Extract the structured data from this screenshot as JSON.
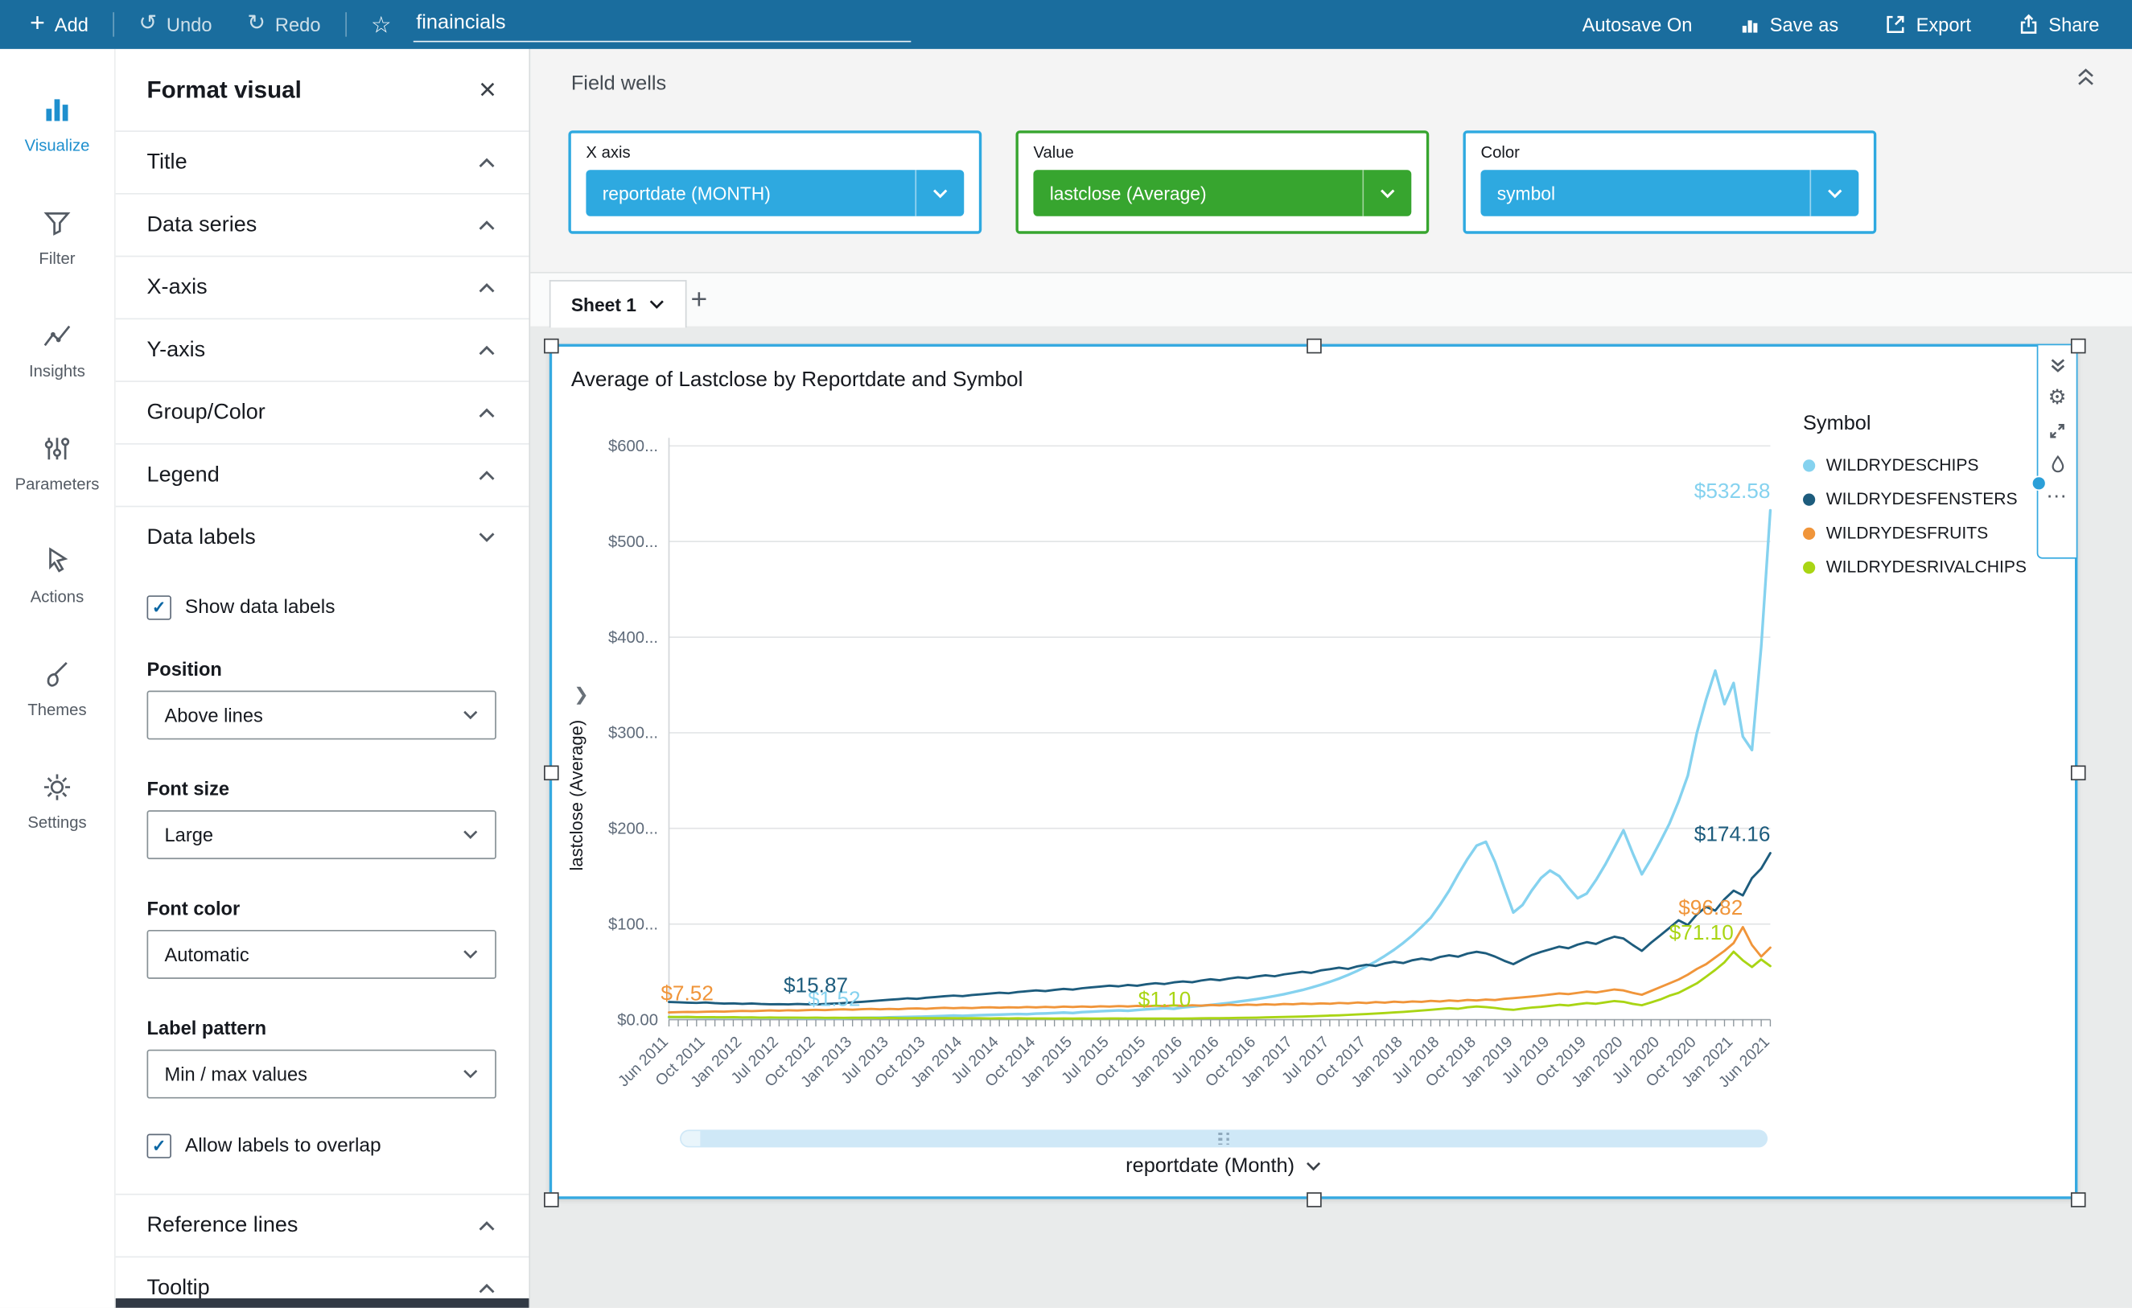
{
  "topbar": {
    "add": "Add",
    "undo": "Undo",
    "redo": "Redo",
    "title": "finaincials",
    "autosave": "Autosave On",
    "save_as": "Save as",
    "export": "Export",
    "share": "Share"
  },
  "nav_rail": {
    "items": [
      {
        "id": "visualize",
        "label": "Visualize",
        "active": true
      },
      {
        "id": "filter",
        "label": "Filter",
        "active": false
      },
      {
        "id": "insights",
        "label": "Insights",
        "active": false
      },
      {
        "id": "parameters",
        "label": "Parameters",
        "active": false
      },
      {
        "id": "actions",
        "label": "Actions",
        "active": false
      },
      {
        "id": "themes",
        "label": "Themes",
        "active": false
      },
      {
        "id": "settings",
        "label": "Settings",
        "active": false
      }
    ]
  },
  "format_panel": {
    "title": "Format visual",
    "close_label": "×",
    "sections_top": [
      "Title",
      "Data series",
      "X-axis",
      "Y-axis",
      "Group/Color",
      "Legend"
    ],
    "data_labels": {
      "header": "Data labels",
      "show_label": "Show data labels",
      "show_checked": true,
      "fields": [
        {
          "label": "Position",
          "value": "Above lines"
        },
        {
          "label": "Font size",
          "value": "Large"
        },
        {
          "label": "Font color",
          "value": "Automatic"
        },
        {
          "label": "Label pattern",
          "value": "Min / max values"
        }
      ],
      "overlap_label": "Allow labels to overlap",
      "overlap_checked": true
    },
    "sections_bottom": [
      "Reference lines",
      "Tooltip"
    ]
  },
  "field_wells": {
    "title": "Field wells",
    "wells": [
      {
        "label": "X axis",
        "value": "reportdate (MONTH)",
        "color": "#2ea9e0",
        "border": "#2ea9e0"
      },
      {
        "label": "Value",
        "value": "lastclose (Average)",
        "color": "#37a52f",
        "border": "#37a52f"
      },
      {
        "label": "Color",
        "value": "symbol",
        "color": "#2ea9e0",
        "border": "#2ea9e0"
      }
    ]
  },
  "sheet": {
    "active_tab": "Sheet 1"
  },
  "visual": {
    "title": "Average of Lastclose by Reportdate and Symbol"
  },
  "chart_data": {
    "type": "line",
    "title": "Average of Lastclose by Reportdate and Symbol",
    "xlabel": "reportdate (Month)",
    "ylabel": "lastclose (Average)",
    "legend_title": "Symbol",
    "legend_position": "right",
    "grid": true,
    "ylim": [
      0,
      600
    ],
    "y_tick_labels": [
      "$0.00",
      "$100...",
      "$200...",
      "$300...",
      "$400...",
      "$500...",
      "$600..."
    ],
    "x_tick_labels": [
      "Jun 2011",
      "Oct 2011",
      "Jan 2012",
      "Jul 2012",
      "Oct 2012",
      "Jan 2013",
      "Jul 2013",
      "Oct 2013",
      "Jan 2014",
      "Jul 2014",
      "Oct 2014",
      "Jan 2015",
      "Jul 2015",
      "Oct 2015",
      "Jan 2016",
      "Jul 2016",
      "Oct 2016",
      "Jan 2017",
      "Jul 2017",
      "Oct 2017",
      "Jan 2018",
      "Jul 2018",
      "Oct 2018",
      "Jan 2019",
      "Jul 2019",
      "Oct 2019",
      "Jan 2020",
      "Jul 2020",
      "Oct 2020",
      "Jan 2021",
      "Jun 2021"
    ],
    "data_labels": {
      "pattern": "Min / max values",
      "position": "Above lines",
      "font_size": "Large"
    },
    "series": [
      {
        "name": "WILDRYDESCHIPS",
        "color": "#85d2ef",
        "values": [
          2.6,
          2.5,
          2.7,
          2.4,
          2.3,
          2.2,
          2.4,
          2.3,
          2.2,
          2.1,
          2.0,
          1.9,
          1.9,
          1.8,
          1.7,
          1.6,
          1.7,
          1.6,
          1.52,
          1.6,
          1.8,
          1.9,
          2.0,
          2.2,
          2.4,
          2.6,
          2.8,
          3.0,
          3.3,
          3.6,
          3.9,
          4.2,
          4.0,
          4.4,
          4.7,
          5.0,
          5.3,
          5.6,
          5.9,
          5.7,
          6.2,
          6.6,
          7.0,
          7.4,
          7.0,
          7.8,
          8.3,
          8.8,
          9.2,
          9.7,
          9.3,
          10.1,
          10.8,
          11.4,
          12.0,
          11.4,
          12.8,
          13.6,
          14.5,
          15.4,
          16.4,
          17.5,
          18.7,
          20.0,
          21.4,
          23.0,
          24.7,
          26.6,
          28.7,
          31.0,
          33.6,
          36.4,
          39.5,
          43.0,
          46.8,
          51.0,
          55.7,
          60.9,
          66.7,
          73.1,
          80.2,
          88.1,
          96.9,
          106.6,
          120,
          135,
          152,
          168,
          182,
          186,
          165,
          138,
          112,
          120,
          135,
          148,
          156,
          150,
          138,
          127,
          132,
          146,
          162,
          180,
          198,
          174,
          152,
          168,
          186,
          205,
          228,
          255,
          300,
          335,
          365,
          330,
          352,
          296,
          282,
          390,
          532.58
        ]
      },
      {
        "name": "WILDRYDESFENSTERS",
        "color": "#1d5c7d",
        "values": [
          18.5,
          18.2,
          17.8,
          17.5,
          17.9,
          17.2,
          16.8,
          17.1,
          16.5,
          16.9,
          16.3,
          16.0,
          16.2,
          15.9,
          16.4,
          16.0,
          15.87,
          16.3,
          16.8,
          17.4,
          18.0,
          18.6,
          19.3,
          20.0,
          20.8,
          21.5,
          22.3,
          21.8,
          22.9,
          23.6,
          24.4,
          25.2,
          24.6,
          25.8,
          26.5,
          27.3,
          28.2,
          27.6,
          28.8,
          29.7,
          30.5,
          29.8,
          31.2,
          32.1,
          31.4,
          32.8,
          33.7,
          34.6,
          35.6,
          34.8,
          36.2,
          35.4,
          37.0,
          38.1,
          37.2,
          38.9,
          40.0,
          39.1,
          41.0,
          42.2,
          41.3,
          43.0,
          44.2,
          43.3,
          45.1,
          46.4,
          45.4,
          47.3,
          48.6,
          50.0,
          48.9,
          51.4,
          52.8,
          54.3,
          53.1,
          55.8,
          57.4,
          56.1,
          58.9,
          60.5,
          59.2,
          62.1,
          63.8,
          62.4,
          65.5,
          67.3,
          65.8,
          69.1,
          71.0,
          69.4,
          66.0,
          61.5,
          58.0,
          63.0,
          67.5,
          70.8,
          73.5,
          76.4,
          74.6,
          78.5,
          81.0,
          79.2,
          83.5,
          86.8,
          84.9,
          78.0,
          72.0,
          80.5,
          88,
          96,
          104,
          99,
          110,
          118,
          114,
          126,
          135,
          130,
          148,
          158,
          174.16
        ]
      },
      {
        "name": "WILDRYDESFRUITS",
        "color": "#f0953a",
        "values": [
          7.52,
          7.8,
          8.1,
          7.9,
          8.3,
          8.6,
          8.4,
          8.8,
          9.1,
          8.9,
          9.3,
          9.6,
          9.4,
          9.8,
          9.5,
          10.0,
          10.3,
          10.0,
          10.5,
          10.8,
          10.4,
          10.9,
          11.2,
          10.8,
          11.3,
          11.0,
          11.5,
          11.8,
          11.4,
          11.9,
          12.3,
          11.9,
          12.4,
          12.1,
          12.6,
          12.9,
          12.5,
          13.0,
          12.7,
          13.2,
          12.8,
          13.4,
          13.0,
          13.6,
          13.2,
          13.8,
          13.4,
          14.0,
          13.6,
          14.2,
          13.8,
          14.4,
          14.0,
          14.6,
          14.2,
          14.9,
          14.4,
          15.1,
          14.7,
          15.3,
          14.9,
          15.6,
          15.1,
          15.8,
          15.4,
          16.1,
          15.7,
          16.4,
          16.0,
          16.8,
          16.3,
          17.1,
          16.7,
          17.5,
          17.0,
          17.9,
          17.4,
          18.3,
          17.8,
          18.7,
          18.2,
          19.1,
          18.6,
          19.6,
          19.1,
          20.1,
          19.5,
          20.6,
          20.0,
          21.1,
          20.5,
          21.7,
          22.4,
          23.3,
          24.2,
          25.2,
          26.3,
          27.5,
          26.7,
          28.0,
          29.3,
          28.4,
          30.0,
          31.5,
          30.5,
          28.0,
          26.0,
          30.0,
          34,
          38,
          42,
          47,
          53,
          58,
          65,
          72,
          80,
          96.82,
          78,
          66,
          75.3
        ]
      },
      {
        "name": "WILDRYDESRIVALCHIPS",
        "color": "#a9d514",
        "values": [
          2.8,
          2.7,
          2.9,
          2.6,
          2.5,
          2.6,
          2.4,
          2.5,
          2.3,
          2.4,
          2.2,
          2.3,
          2.2,
          2.1,
          2.2,
          2.0,
          2.1,
          1.9,
          2.0,
          1.9,
          1.8,
          1.9,
          1.8,
          1.7,
          1.8,
          1.7,
          1.6,
          1.7,
          1.6,
          1.5,
          1.6,
          1.5,
          1.4,
          1.5,
          1.4,
          1.3,
          1.4,
          1.3,
          1.4,
          1.3,
          1.25,
          1.3,
          1.2,
          1.3,
          1.2,
          1.3,
          1.2,
          1.2,
          1.3,
          1.25,
          1.2,
          1.18,
          1.15,
          1.12,
          1.1,
          1.15,
          1.2,
          1.3,
          1.4,
          1.5,
          1.6,
          1.7,
          1.9,
          2.0,
          2.2,
          2.4,
          2.6,
          2.8,
          3.0,
          3.3,
          3.6,
          3.9,
          4.2,
          4.6,
          5.0,
          5.4,
          5.9,
          6.4,
          6.9,
          7.5,
          8.1,
          8.8,
          9.5,
          10.3,
          11.1,
          12.0,
          11.4,
          12.9,
          13.8,
          13.1,
          12.2,
          11.0,
          10.2,
          11.5,
          12.6,
          13.4,
          14.3,
          15.5,
          14.8,
          16.2,
          17.4,
          16.6,
          18.0,
          19.5,
          18.6,
          16.5,
          15.0,
          18.0,
          21,
          25,
          28,
          33,
          38,
          45,
          52,
          60,
          71.1,
          62,
          55,
          63,
          56
        ]
      }
    ]
  }
}
